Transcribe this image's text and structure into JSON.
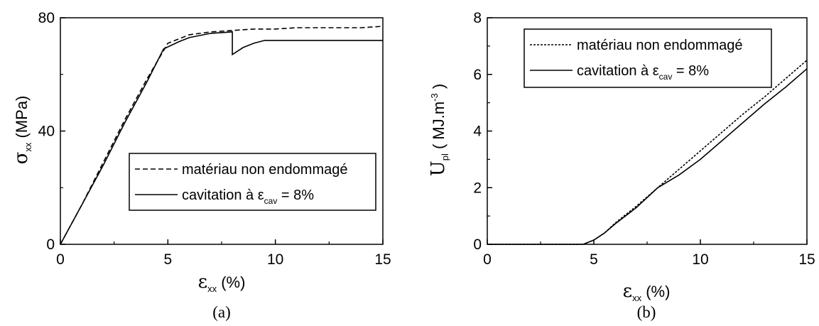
{
  "chart_data": [
    {
      "type": "line",
      "panel_label": "(a)",
      "xlabel": {
        "symbol": "ε",
        "sub": "xx",
        "unit": "(%)"
      },
      "ylabel": {
        "symbol": "σ",
        "sub": "xx",
        "unit": "(MPa)"
      },
      "xlim": [
        0,
        15
      ],
      "ylim": [
        0,
        80
      ],
      "xticks": [
        "0",
        "5",
        "10",
        "15"
      ],
      "yticks": [
        "0",
        "40",
        "80"
      ],
      "grid": false,
      "legend_position": "center-right",
      "series": [
        {
          "name": "matériau non endommagé",
          "style": "dashed",
          "x": [
            0,
            1,
            2,
            3,
            4,
            5,
            6,
            7,
            8,
            9,
            10,
            11,
            12,
            13,
            14,
            15
          ],
          "y": [
            0,
            14,
            29,
            44,
            58,
            71,
            74,
            75,
            75.5,
            76,
            76,
            76.5,
            76.5,
            76.5,
            76.5,
            77
          ]
        },
        {
          "name": "cavitation à ε",
          "name_sub": "cav",
          "name_suffix": " = 8%",
          "style": "solid",
          "x": [
            0,
            1,
            2,
            3,
            4,
            4.8,
            5.5,
            6,
            7,
            8,
            8,
            8.5,
            9,
            9.5,
            10,
            12,
            15
          ],
          "y": [
            0,
            14,
            28,
            43,
            57,
            69,
            71.5,
            73,
            74.5,
            75,
            67,
            69.5,
            71,
            72,
            72,
            72,
            72
          ]
        }
      ]
    },
    {
      "type": "line",
      "panel_label": "(b)",
      "xlabel": {
        "symbol": "ε",
        "sub": "xx",
        "unit": "(%)"
      },
      "ylabel": {
        "symbol": "U",
        "sub": "pl",
        "unit": "( MJ.m",
        "unit_sup": "-3",
        "unit_close": " )"
      },
      "xlim": [
        0,
        15
      ],
      "ylim": [
        0,
        8
      ],
      "xticks": [
        "0",
        "5",
        "10",
        "15"
      ],
      "yticks": [
        "0",
        "2",
        "4",
        "6",
        "8"
      ],
      "grid": false,
      "legend_position": "top-left",
      "series": [
        {
          "name": "matériau non endommagé",
          "style": "dotted",
          "x": [
            0,
            4.5,
            5,
            5.5,
            6,
            7,
            8,
            9,
            10,
            11,
            12,
            13,
            14,
            15
          ],
          "y": [
            0,
            0,
            0.15,
            0.4,
            0.75,
            1.35,
            2.0,
            2.65,
            3.3,
            3.95,
            4.6,
            5.2,
            5.85,
            6.5
          ]
        },
        {
          "name": "cavitation à ε",
          "name_sub": "cav",
          "name_suffix": " = 8%",
          "style": "solid",
          "x": [
            0,
            4.5,
            5,
            5.5,
            6,
            7,
            8,
            9,
            10,
            11,
            12,
            13,
            14,
            15
          ],
          "y": [
            0,
            0,
            0.15,
            0.4,
            0.72,
            1.3,
            2.0,
            2.45,
            3.0,
            3.65,
            4.3,
            4.95,
            5.55,
            6.2
          ]
        }
      ]
    }
  ]
}
